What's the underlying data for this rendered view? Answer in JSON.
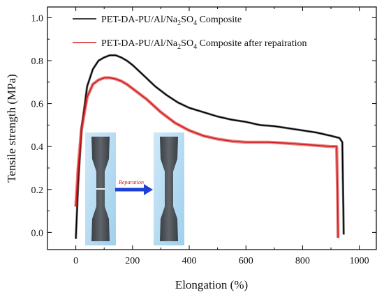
{
  "chart_data": {
    "type": "line",
    "title": "",
    "xlabel": "Elongation (%)",
    "ylabel": "Tensile strength (MPa)",
    "xlim": [
      -100,
      1060
    ],
    "ylim": [
      -0.08,
      1.05
    ],
    "x_ticks": [
      0,
      200,
      400,
      600,
      800,
      1000
    ],
    "y_ticks": [
      0.0,
      0.2,
      0.4,
      0.6,
      0.8,
      1.0
    ],
    "x_tick_labels": [
      "0",
      "200",
      "400",
      "600",
      "800",
      "1000"
    ],
    "y_tick_labels": [
      "0.0",
      "0.2",
      "0.4",
      "0.6",
      "0.8",
      "1.0"
    ],
    "grid": false,
    "legend_position": "top-right",
    "series": [
      {
        "name": "PET-DA-PU/Al/Na2SO4 Composite",
        "legend_parts": [
          "PET-DA-PU/Al/Na",
          "2",
          "SO",
          "4",
          " Composite"
        ],
        "color": "#000000",
        "x": [
          0,
          8,
          20,
          40,
          60,
          80,
          100,
          120,
          140,
          160,
          180,
          200,
          240,
          280,
          320,
          360,
          400,
          450,
          500,
          550,
          600,
          650,
          700,
          750,
          800,
          850,
          900,
          930,
          940,
          942,
          945
        ],
        "y": [
          -0.03,
          0.22,
          0.48,
          0.68,
          0.76,
          0.8,
          0.815,
          0.825,
          0.825,
          0.815,
          0.8,
          0.78,
          0.73,
          0.68,
          0.64,
          0.605,
          0.58,
          0.56,
          0.54,
          0.525,
          0.515,
          0.5,
          0.495,
          0.485,
          0.475,
          0.465,
          0.45,
          0.44,
          0.42,
          0.25,
          -0.01
        ]
      },
      {
        "name": "PET-DA-PU/Al/Na2SO4 Composite after repairation",
        "legend_parts": [
          "PET-DA-PU/Al/Na",
          "2",
          "SO",
          "4",
          " Composite after repairation"
        ],
        "color": "#d41c1c",
        "x": [
          0,
          8,
          20,
          40,
          60,
          80,
          100,
          120,
          140,
          160,
          180,
          200,
          250,
          300,
          350,
          400,
          450,
          500,
          550,
          600,
          650,
          680,
          750,
          800,
          850,
          900,
          920,
          923,
          925
        ],
        "y": [
          0.12,
          0.3,
          0.48,
          0.63,
          0.69,
          0.71,
          0.72,
          0.72,
          0.715,
          0.705,
          0.69,
          0.67,
          0.62,
          0.56,
          0.51,
          0.475,
          0.45,
          0.435,
          0.425,
          0.42,
          0.42,
          0.42,
          0.415,
          0.41,
          0.405,
          0.4,
          0.4,
          0.2,
          -0.025
        ]
      }
    ],
    "annotations": [
      {
        "text": "Reparation"
      }
    ]
  }
}
